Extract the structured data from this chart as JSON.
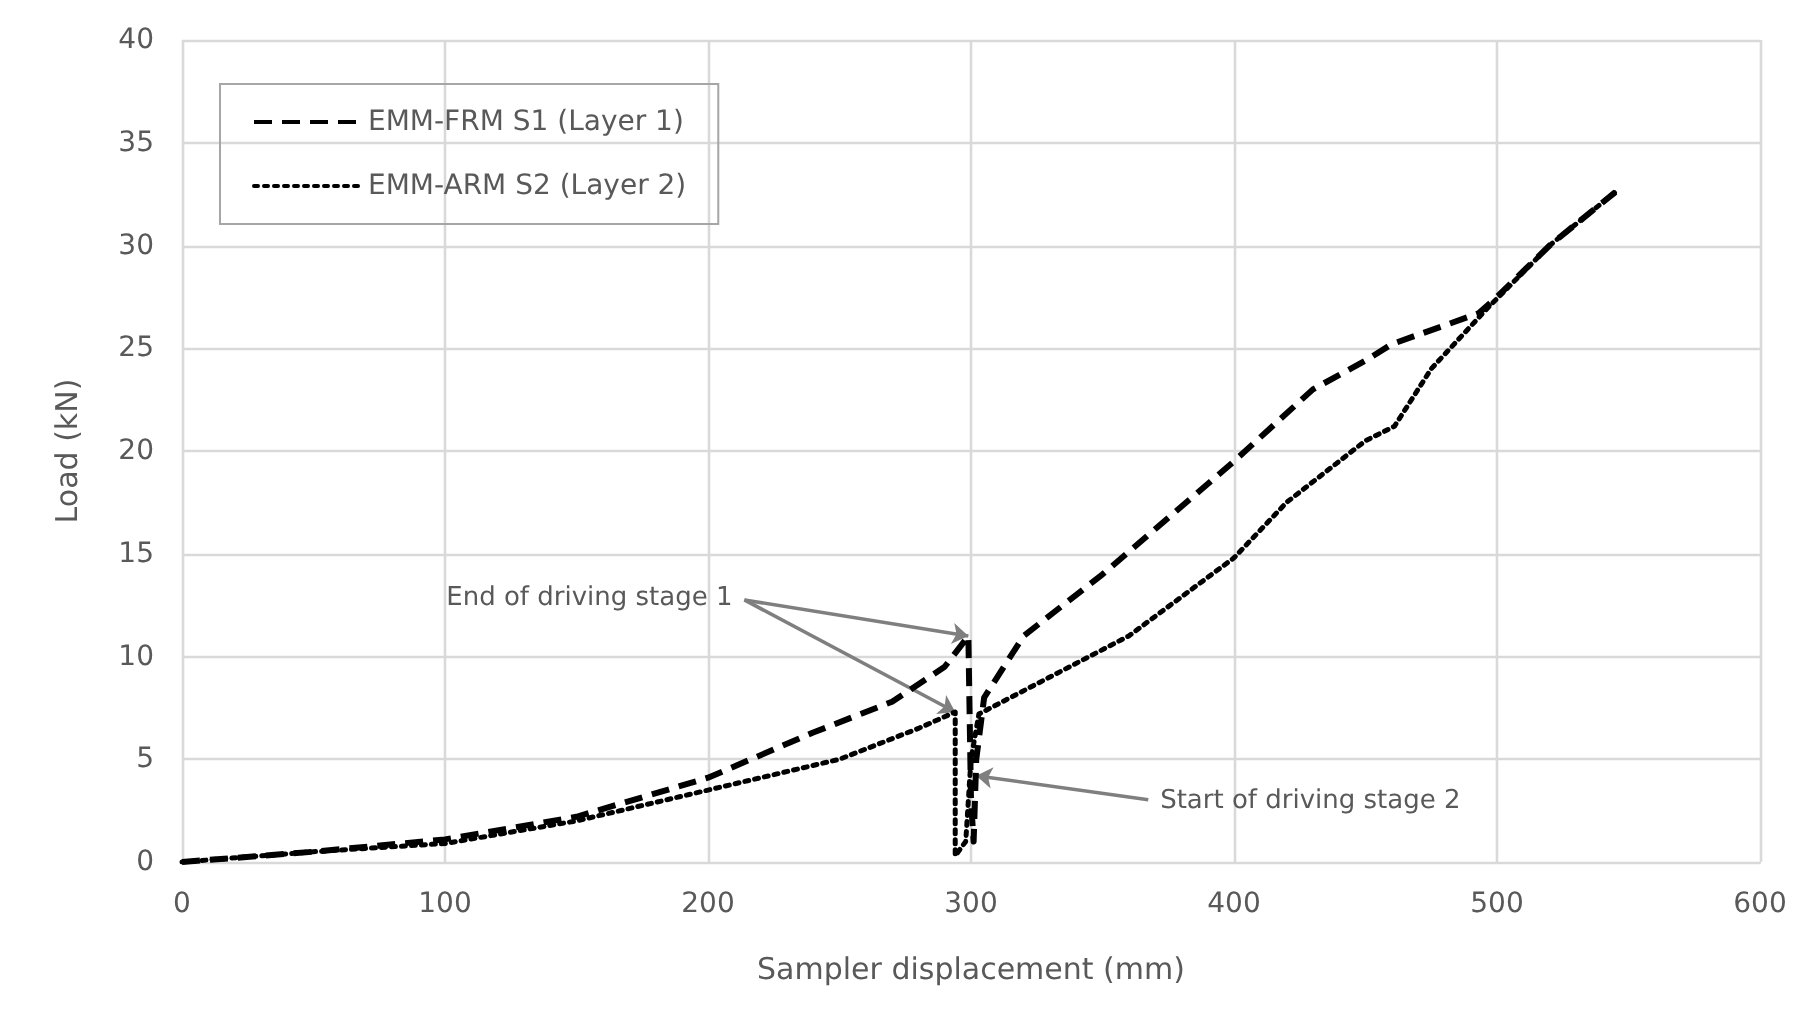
{
  "chart_data": {
    "type": "line",
    "xlabel": "Sampler displacement (mm)",
    "ylabel": "Load (kN)",
    "xlim": [
      0,
      600
    ],
    "xticks": [
      0,
      100,
      200,
      300,
      400,
      500,
      600
    ],
    "ylim": [
      0,
      40
    ],
    "yticks": [
      0,
      5,
      10,
      15,
      20,
      25,
      30,
      35,
      40
    ],
    "grid": true,
    "legend": "top left",
    "marker": "none",
    "series": [
      {
        "name": "EMM-FRM S1 (Layer 1)",
        "color": "#000000",
        "line_style": "dashed",
        "x": [
          0,
          50,
          100,
          150,
          200,
          240,
          270,
          290,
          299,
          300,
          301,
          302,
          305,
          320,
          350,
          400,
          430,
          450,
          460,
          493,
          500,
          520,
          545
        ],
        "values": [
          0,
          0.5,
          1.1,
          2.2,
          4.1,
          6.3,
          7.8,
          9.5,
          11,
          3,
          1,
          5,
          8,
          11,
          14,
          19.5,
          23,
          24.4,
          25.2,
          26.7,
          27.5,
          30,
          32.6
        ]
      },
      {
        "name": "EMM-ARM S2 (Layer 2)",
        "color": "#000000",
        "line_style": "dotted",
        "x": [
          0,
          50,
          100,
          150,
          200,
          250,
          280,
          294,
          294,
          298,
          300,
          303,
          330,
          360,
          400,
          420,
          450,
          461,
          475,
          496,
          520,
          545
        ],
        "values": [
          0,
          0.5,
          0.9,
          2,
          3.5,
          5,
          6.5,
          7.3,
          0.3,
          1,
          5,
          7.2,
          9,
          11,
          14.8,
          17.5,
          20.5,
          21.2,
          24,
          26.9,
          30,
          32.6
        ]
      }
    ],
    "annotations": [
      {
        "text": "End of driving stage 1",
        "x": 299,
        "y": 11
      },
      {
        "text": "Start of driving stage 2",
        "x": 302,
        "y": 4.2
      }
    ]
  }
}
